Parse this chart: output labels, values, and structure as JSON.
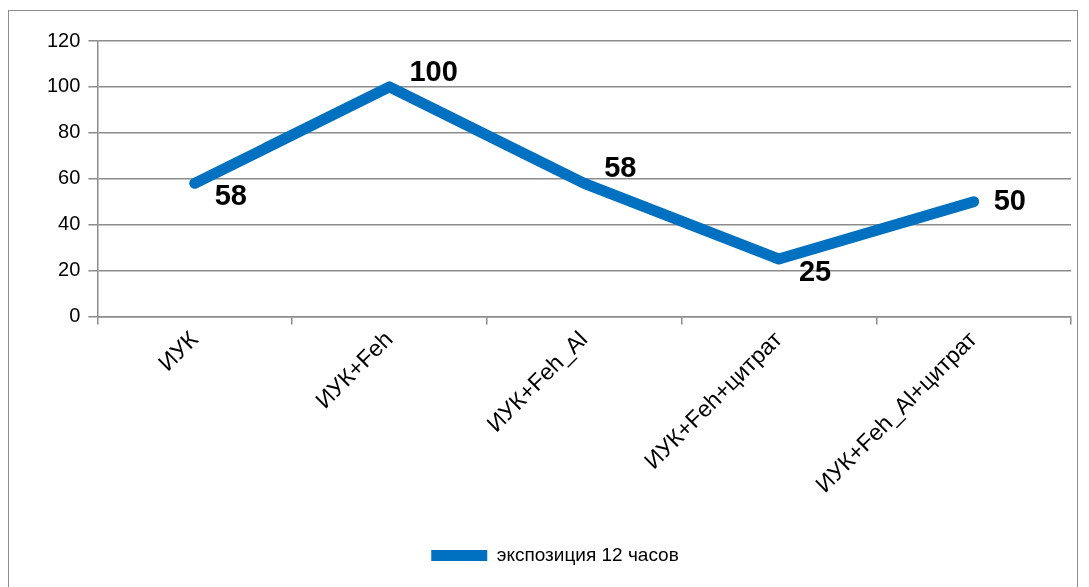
{
  "chart_data": {
    "type": "line",
    "categories": [
      "ИУК",
      "ИУК+Feh",
      "ИУК+Feh_Al",
      "ИУК+Feh+цитрат",
      "ИУК+Feh_Al+цитрат"
    ],
    "series": [
      {
        "name": "экспозиция 12 часов",
        "color": "#0070c0",
        "values": [
          58,
          100,
          58,
          25,
          50
        ]
      }
    ],
    "ylim": [
      0,
      120
    ],
    "yticks": [
      0,
      20,
      40,
      60,
      80,
      100,
      120
    ],
    "grid": "y",
    "legend": "bottom",
    "data_labels": true,
    "marker": "none",
    "line_style": "solid"
  }
}
